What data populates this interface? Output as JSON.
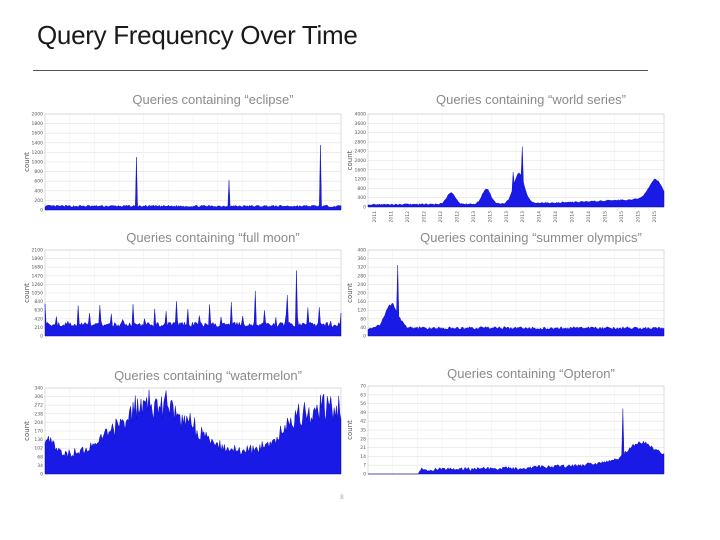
{
  "page": {
    "title": "Query Frequency Over Time",
    "footer_mark": "8"
  },
  "chart_data": [
    {
      "type": "area",
      "title": "Queries containing “eclipse”",
      "ylabel": "count",
      "ylim": [
        0,
        2000
      ],
      "yticks": [
        0,
        200,
        400,
        600,
        800,
        1000,
        1200,
        1400,
        1600,
        1800,
        2000
      ],
      "ytick_labels": [
        "0",
        "200",
        "400",
        "600",
        "800",
        "1000",
        "1200",
        "1400",
        "1600",
        "1800",
        "2000"
      ],
      "baseline": 60,
      "noise": 40,
      "spikes": [
        {
          "at": 0.31,
          "value": 1100
        },
        {
          "at": 0.62,
          "value": 620
        },
        {
          "at": 0.93,
          "value": 1350
        }
      ],
      "bumps": [],
      "trend": 0,
      "color": "#1a1ae6"
    },
    {
      "type": "area",
      "title": "Queries containing “world series”",
      "ylabel": "count",
      "ylim": [
        0,
        4000
      ],
      "yticks": [
        0,
        400,
        800,
        1200,
        1600,
        2000,
        2400,
        2800,
        3200,
        3600,
        4000
      ],
      "ytick_labels": [
        "0",
        "400",
        "800",
        "1200",
        "1600",
        "2000",
        "2400",
        "2800",
        "3200",
        "3600",
        "4000"
      ],
      "baseline": 80,
      "noise": 60,
      "spikes": [
        {
          "at": 0.52,
          "value": 2600
        },
        {
          "at": 0.49,
          "value": 1500
        }
      ],
      "bumps": [
        {
          "at": 0.28,
          "width": 0.02,
          "value": 500
        },
        {
          "at": 0.4,
          "width": 0.02,
          "value": 650
        },
        {
          "at": 0.51,
          "width": 0.025,
          "value": 1300
        },
        {
          "at": 0.97,
          "width": 0.03,
          "value": 800
        }
      ],
      "trend": 300,
      "xtick_labels": [
        "2011",
        "2011",
        "2012",
        "2012",
        "2012",
        "2012",
        "2013",
        "2013",
        "2013",
        "2013",
        "2014",
        "2014",
        "2014",
        "2014",
        "2015",
        "2015",
        "2015",
        "2015"
      ],
      "color": "#1a1ae6"
    },
    {
      "type": "area",
      "title": "Queries containing “full moon”",
      "ylabel": "count",
      "ylim": [
        0,
        2100
      ],
      "yticks": [
        0,
        210,
        420,
        630,
        840,
        1050,
        1260,
        1470,
        1680,
        1890,
        2100
      ],
      "ytick_labels": [
        "0",
        "210",
        "420",
        "630",
        "840",
        "1050",
        "1260",
        "1470",
        "1680",
        "1890",
        "2100"
      ],
      "baseline": 220,
      "noise": 120,
      "spikes": [
        {
          "at": 0.85,
          "value": 1600
        },
        {
          "at": 0.82,
          "value": 1000
        },
        {
          "at": 0.71,
          "value": 1100
        }
      ],
      "periodic": {
        "period": 0.037,
        "value": 600
      },
      "bumps": [],
      "trend": 0,
      "color": "#1a1ae6"
    },
    {
      "type": "area",
      "title": "Queries containing “summer olympics”",
      "ylabel": "count",
      "ylim": [
        0,
        400
      ],
      "yticks": [
        0,
        40,
        80,
        120,
        160,
        200,
        240,
        280,
        320,
        360,
        400
      ],
      "ytick_labels": [
        "0",
        "40",
        "80",
        "120",
        "160",
        "200",
        "240",
        "280",
        "320",
        "360",
        "400"
      ],
      "baseline": 30,
      "noise": 14,
      "spikes": [
        {
          "at": 0.1,
          "value": 330
        }
      ],
      "bumps": [
        {
          "at": 0.08,
          "width": 0.03,
          "value": 110
        }
      ],
      "trend": 0,
      "color": "#1a1ae6"
    },
    {
      "type": "area",
      "title": "Queries containing “watermelon”",
      "ylabel": "count",
      "ylim": [
        0,
        340
      ],
      "yticks": [
        0,
        34,
        68,
        102,
        136,
        170,
        204,
        238,
        272,
        306,
        340
      ],
      "ytick_labels": [
        "0",
        "34",
        "68",
        "102",
        "136",
        "170",
        "204",
        "238",
        "272",
        "306",
        "340"
      ],
      "baseline": 40,
      "noise": 35,
      "spikes": [],
      "seasonal": {
        "peaks": [
          0.37,
          0.95
        ],
        "value": 220
      },
      "bumps": [],
      "trend": 0,
      "color": "#1a1ae6"
    },
    {
      "type": "area",
      "title": "Queries containing “Opteron”",
      "ylabel": "count",
      "ylim": [
        0,
        70
      ],
      "yticks": [
        0,
        7,
        14,
        21,
        28,
        35,
        42,
        49,
        56,
        63,
        70
      ],
      "ytick_labels": [
        "0",
        "7",
        "14",
        "21",
        "28",
        "35",
        "42",
        "49",
        "56",
        "63",
        "70"
      ],
      "baseline": 2,
      "noise": 3,
      "spikes": [
        {
          "at": 0.86,
          "value": 52
        }
      ],
      "bumps": [
        {
          "at": 0.92,
          "width": 0.06,
          "value": 14
        }
      ],
      "start": 0.17,
      "trend": 10,
      "color": "#1a1ae6"
    }
  ]
}
